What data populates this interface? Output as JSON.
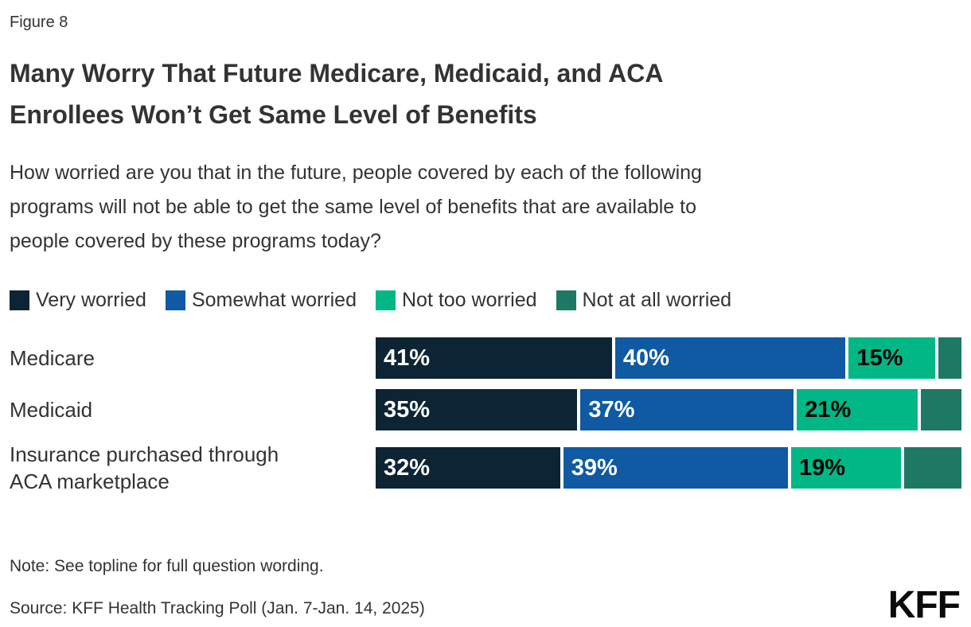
{
  "figure": {
    "label": "Figure 8",
    "title": "Many Worry That Future Medicare, Medicaid, and ACA\nEnrollees Won’t Get Same Level of Benefits",
    "question": "How worried are you that in the future, people covered by each of the following\nprograms will not be able to get the same level of benefits that are available to\npeople covered by these programs today?",
    "note": "Note: See topline for full question wording.",
    "source": "Source: KFF Health Tracking Poll (Jan. 7-Jan. 14, 2025)",
    "logo": "KFF"
  },
  "chart_data": {
    "type": "bar",
    "orientation": "horizontal-stacked",
    "title": "Many Worry That Future Medicare, Medicaid, and ACA Enrollees Won’t Get Same Level of Benefits",
    "categories": [
      "Medicare",
      "Medicaid",
      "Insurance purchased through ACA marketplace"
    ],
    "series": [
      {
        "name": "Very worried",
        "color": "#0c2434",
        "values": [
          41,
          35,
          32
        ],
        "labels": [
          "41%",
          "35%",
          "32%"
        ],
        "label_color": "#ffffff"
      },
      {
        "name": "Somewhat worried",
        "color": "#0f5aa2",
        "values": [
          40,
          37,
          39
        ],
        "labels": [
          "40%",
          "37%",
          "39%"
        ],
        "label_color": "#ffffff"
      },
      {
        "name": "Not too worried",
        "color": "#00b785",
        "values": [
          15,
          21,
          19
        ],
        "labels": [
          "15%",
          "21%",
          "19%"
        ],
        "label_color": "#000000"
      },
      {
        "name": "Not at all worried",
        "color": "#1d7864",
        "values": [
          4,
          7,
          10
        ],
        "labels": [
          "",
          "",
          ""
        ],
        "label_color": "#000000"
      }
    ],
    "xlim": [
      0,
      100
    ],
    "value_suffix": "%",
    "legend_position": "top",
    "grid": false
  }
}
